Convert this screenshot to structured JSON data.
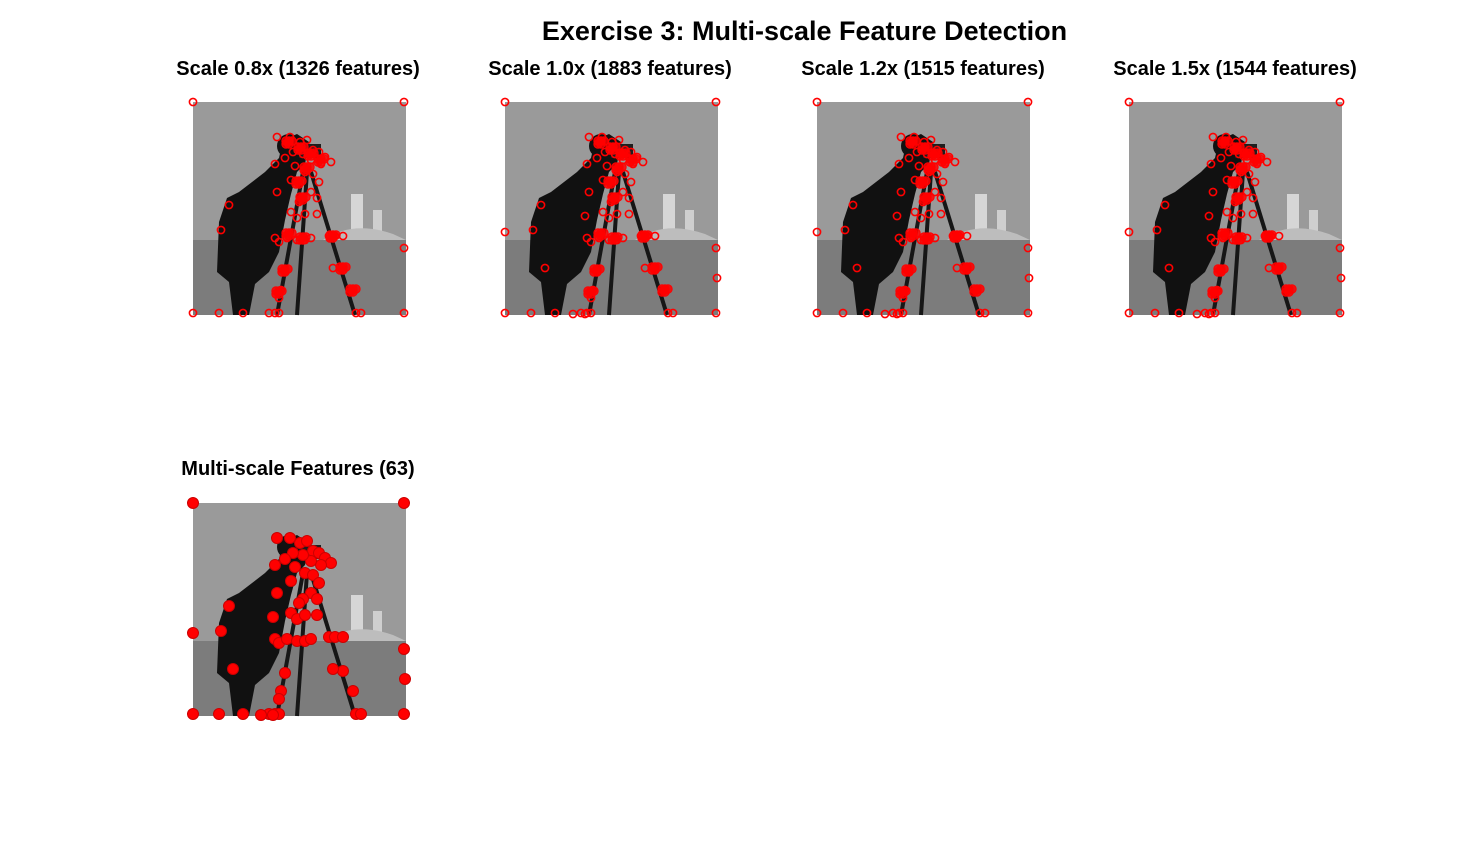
{
  "figure": {
    "title": "Exercise 3: Multi-scale Feature Detection"
  },
  "colors": {
    "marker": "#ff0000",
    "marker_edge": "#cc0000",
    "background": "#ffffff",
    "sky": "#9a9a9a",
    "grass": "#7c7c7c",
    "figure_dark": "#111111"
  },
  "panels": [
    {
      "title": "Scale 0.8x (1326 features)",
      "marker_style": "open-circle"
    },
    {
      "title": "Scale 1.0x (1883 features)",
      "marker_style": "open-circle"
    },
    {
      "title": "Scale 1.2x (1515 features)",
      "marker_style": "open-circle"
    },
    {
      "title": "Scale 1.5x (1544 features)",
      "marker_style": "open-circle"
    },
    {
      "title": "Multi-scale Features (63)",
      "marker_style": "filled-circle"
    }
  ]
}
